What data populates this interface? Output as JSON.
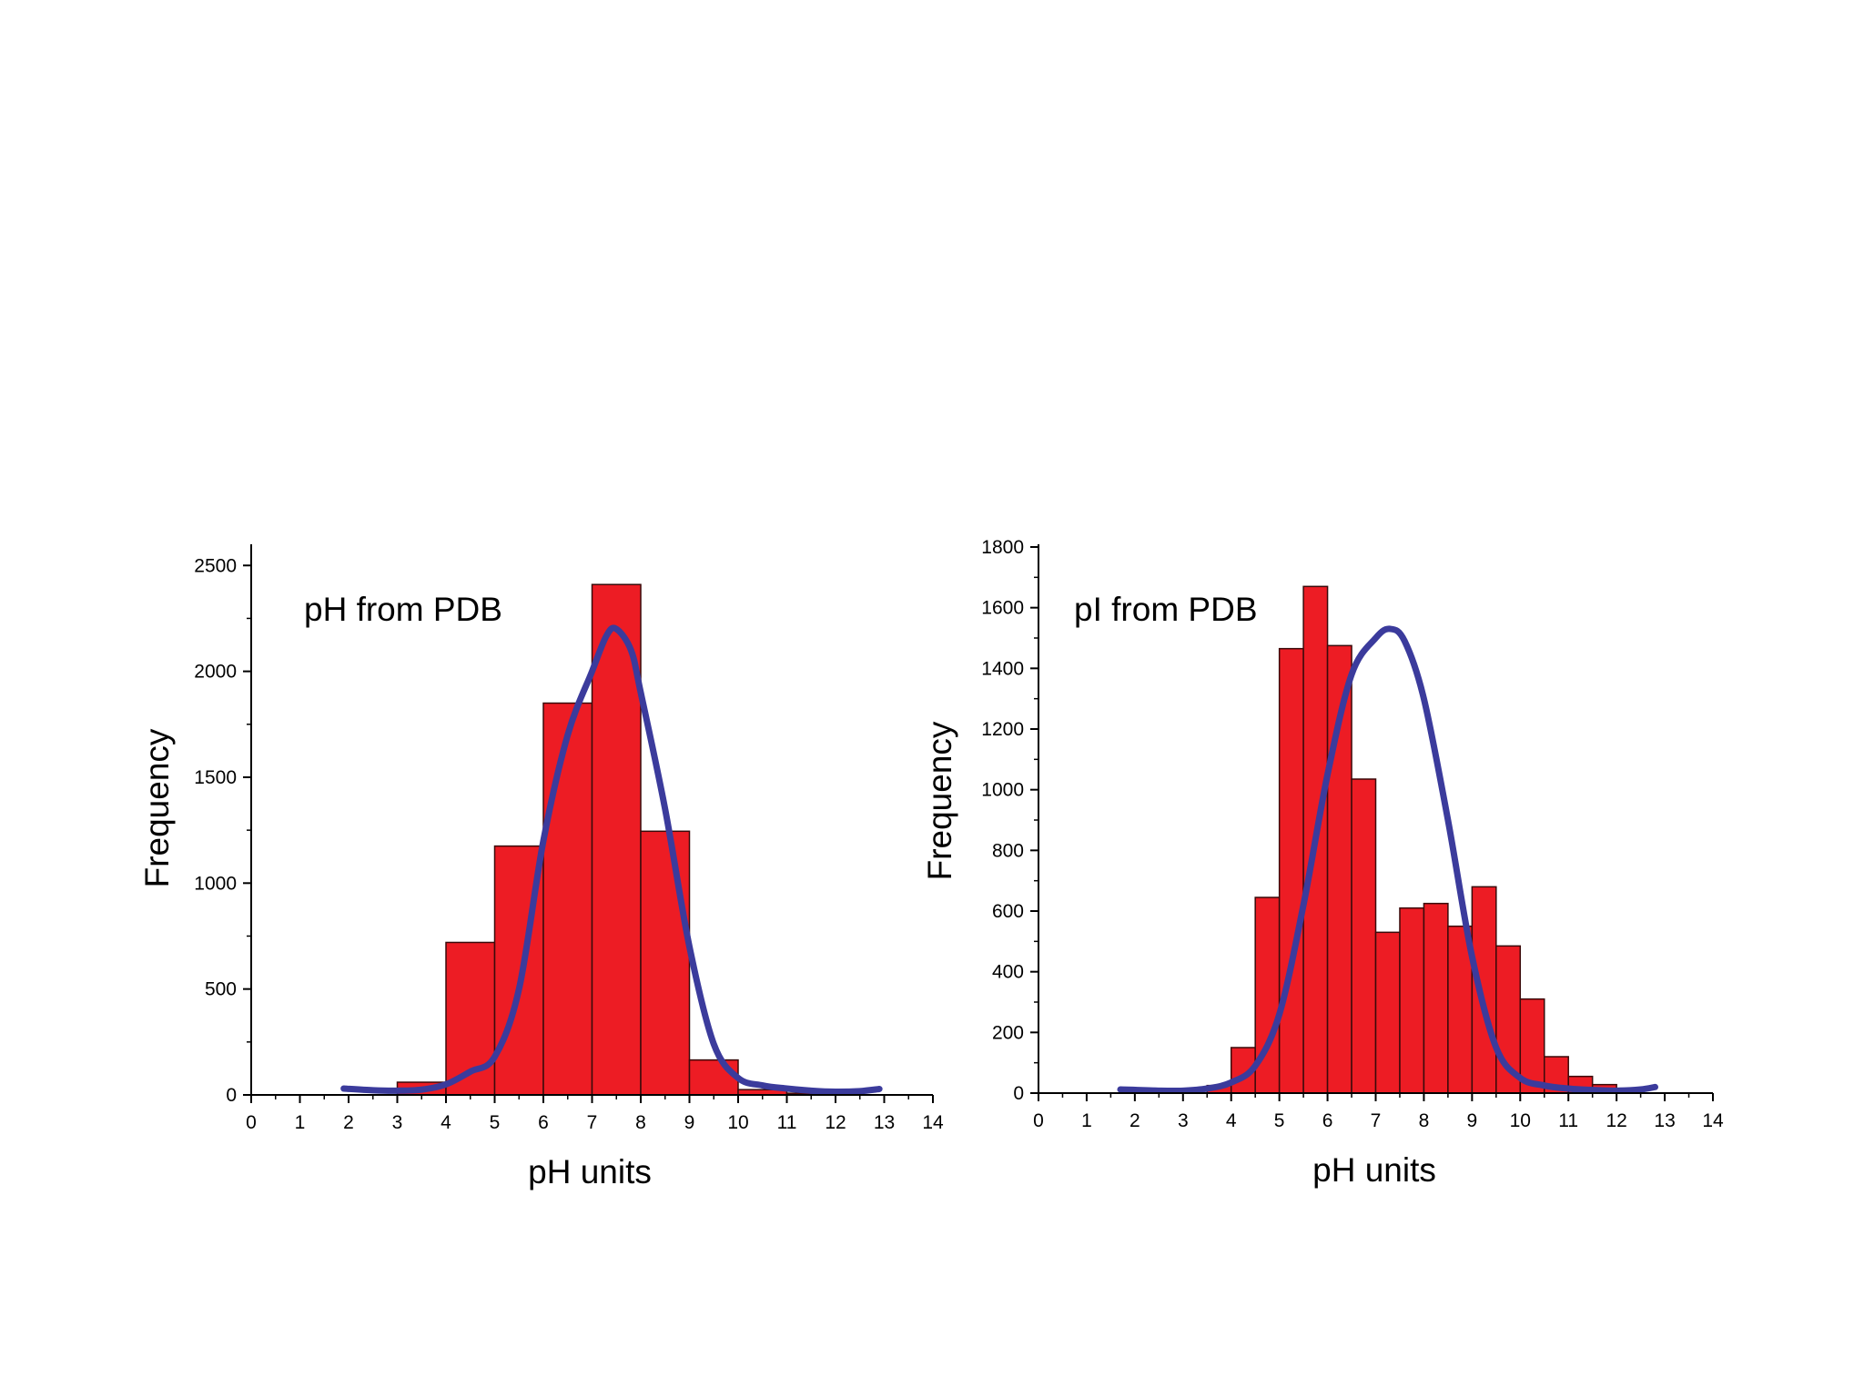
{
  "colors": {
    "bar_fill": "#ed1c24",
    "bar_stroke": "#3a0a0a",
    "curve": "#3b3b9c",
    "axis": "#000000"
  },
  "chart_data": [
    {
      "type": "bar",
      "annotation": "pH from PDB",
      "xlabel": "pH units",
      "ylabel": "Frequency",
      "xlim": [
        0,
        14
      ],
      "ylim": [
        0,
        2600
      ],
      "x_ticks": [
        0,
        1,
        2,
        3,
        4,
        5,
        6,
        7,
        8,
        9,
        10,
        11,
        12,
        13,
        14
      ],
      "y_ticks": [
        0,
        500,
        1000,
        1500,
        2000,
        2500
      ],
      "grid": false,
      "legend": "none",
      "bin_width": 1,
      "bins": [
        {
          "x": 3.5,
          "value": 60
        },
        {
          "x": 4.5,
          "value": 720
        },
        {
          "x": 5.5,
          "value": 1175
        },
        {
          "x": 6.5,
          "value": 1850
        },
        {
          "x": 7.5,
          "value": 2410
        },
        {
          "x": 8.5,
          "value": 1245
        },
        {
          "x": 9.5,
          "value": 165
        },
        {
          "x": 10.5,
          "value": 25
        },
        {
          "x": 11.5,
          "value": 8
        }
      ],
      "fit_curve": {
        "points": [
          [
            1.9,
            30
          ],
          [
            2.5,
            22
          ],
          [
            3,
            20
          ],
          [
            3.5,
            25
          ],
          [
            4,
            50
          ],
          [
            4.5,
            110
          ],
          [
            5,
            180
          ],
          [
            5.5,
            500
          ],
          [
            6,
            1200
          ],
          [
            6.5,
            1700
          ],
          [
            7,
            2000
          ],
          [
            7.3,
            2170
          ],
          [
            7.5,
            2200
          ],
          [
            7.8,
            2100
          ],
          [
            8,
            1900
          ],
          [
            8.5,
            1350
          ],
          [
            9,
            700
          ],
          [
            9.5,
            240
          ],
          [
            10,
            80
          ],
          [
            10.5,
            45
          ],
          [
            11,
            30
          ],
          [
            11.5,
            20
          ],
          [
            12,
            15
          ],
          [
            12.5,
            18
          ],
          [
            12.9,
            28
          ]
        ]
      }
    },
    {
      "type": "bar",
      "annotation": "pI from PDB",
      "xlabel": "pH units",
      "ylabel": "Frequency",
      "xlim": [
        0,
        14
      ],
      "ylim": [
        0,
        1800
      ],
      "x_ticks": [
        0,
        1,
        2,
        3,
        4,
        5,
        6,
        7,
        8,
        9,
        10,
        11,
        12,
        13,
        14
      ],
      "y_ticks": [
        0,
        200,
        400,
        600,
        800,
        1000,
        1200,
        1400,
        1600,
        1800
      ],
      "grid": false,
      "legend": "none",
      "bin_width": 0.5,
      "bins": [
        {
          "x": 3.75,
          "value": 25
        },
        {
          "x": 4.25,
          "value": 150
        },
        {
          "x": 4.75,
          "value": 645
        },
        {
          "x": 5.25,
          "value": 1465
        },
        {
          "x": 5.75,
          "value": 1670
        },
        {
          "x": 6.25,
          "value": 1475
        },
        {
          "x": 6.75,
          "value": 1035
        },
        {
          "x": 7.25,
          "value": 530
        },
        {
          "x": 7.75,
          "value": 610
        },
        {
          "x": 8.25,
          "value": 625
        },
        {
          "x": 8.75,
          "value": 550
        },
        {
          "x": 9.25,
          "value": 680
        },
        {
          "x": 9.75,
          "value": 485
        },
        {
          "x": 10.25,
          "value": 310
        },
        {
          "x": 10.75,
          "value": 120
        },
        {
          "x": 11.25,
          "value": 55
        },
        {
          "x": 11.75,
          "value": 28
        },
        {
          "x": 12.25,
          "value": 8
        }
      ],
      "fit_curve": {
        "points": [
          [
            1.7,
            12
          ],
          [
            2.5,
            8
          ],
          [
            3,
            8
          ],
          [
            3.5,
            15
          ],
          [
            4,
            35
          ],
          [
            4.5,
            90
          ],
          [
            5,
            260
          ],
          [
            5.5,
            620
          ],
          [
            6,
            1050
          ],
          [
            6.5,
            1380
          ],
          [
            7,
            1500
          ],
          [
            7.3,
            1530
          ],
          [
            7.6,
            1490
          ],
          [
            8,
            1300
          ],
          [
            8.5,
            900
          ],
          [
            9,
            450
          ],
          [
            9.5,
            150
          ],
          [
            10,
            50
          ],
          [
            10.5,
            25
          ],
          [
            11,
            15
          ],
          [
            11.5,
            10
          ],
          [
            12,
            8
          ],
          [
            12.5,
            12
          ],
          [
            12.8,
            20
          ]
        ]
      }
    }
  ]
}
